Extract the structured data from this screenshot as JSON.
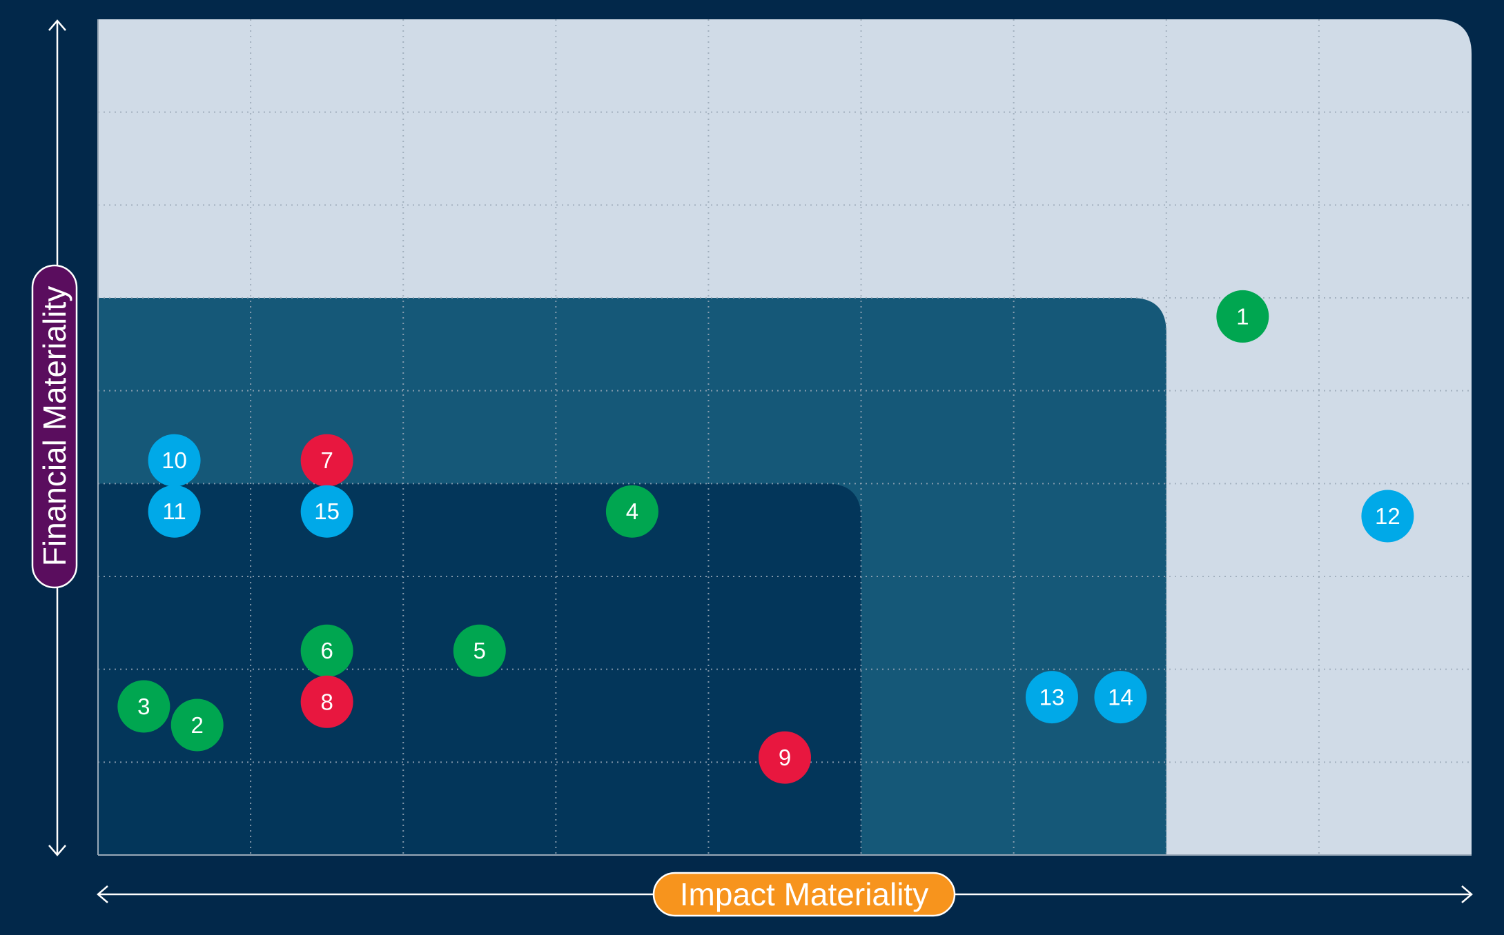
{
  "chart_data": {
    "type": "scatter",
    "x_label": "Impact Materiality",
    "y_label": "Financial Materiality",
    "xlim": [
      0,
      9
    ],
    "ylim": [
      0,
      9
    ],
    "xticks": [
      1,
      2,
      3,
      4,
      5,
      6,
      7,
      8
    ],
    "yticks": [
      1,
      2,
      3,
      4,
      5,
      6,
      7,
      8
    ],
    "grid": true,
    "zones": [
      {
        "xmax": 9,
        "ymax": 9,
        "color": "#d0dbe7"
      },
      {
        "xmax": 7,
        "ymax": 6,
        "color": "#155878"
      },
      {
        "xmax": 5,
        "ymax": 4,
        "color": "#03365a"
      }
    ],
    "points": [
      {
        "label": "1",
        "x": 7.5,
        "y": 5.8,
        "color": "#00a650"
      },
      {
        "label": "2",
        "x": 0.65,
        "y": 1.4,
        "color": "#00a650"
      },
      {
        "label": "3",
        "x": 0.3,
        "y": 1.6,
        "color": "#00a650"
      },
      {
        "label": "4",
        "x": 3.5,
        "y": 3.7,
        "color": "#00a650"
      },
      {
        "label": "5",
        "x": 2.5,
        "y": 2.2,
        "color": "#00a650"
      },
      {
        "label": "6",
        "x": 1.5,
        "y": 2.2,
        "color": "#00a650"
      },
      {
        "label": "7",
        "x": 1.5,
        "y": 4.25,
        "color": "#e8173f"
      },
      {
        "label": "8",
        "x": 1.5,
        "y": 1.65,
        "color": "#e8173f"
      },
      {
        "label": "9",
        "x": 4.5,
        "y": 1.05,
        "color": "#e8173f"
      },
      {
        "label": "10",
        "x": 0.5,
        "y": 4.25,
        "color": "#00a9e8"
      },
      {
        "label": "11",
        "x": 0.5,
        "y": 3.7,
        "color": "#00a9e8"
      },
      {
        "label": "12",
        "x": 8.45,
        "y": 3.65,
        "color": "#00a9e8"
      },
      {
        "label": "13",
        "x": 6.25,
        "y": 1.7,
        "color": "#00a9e8"
      },
      {
        "label": "14",
        "x": 6.7,
        "y": 1.7,
        "color": "#00a9e8"
      },
      {
        "label": "15",
        "x": 1.5,
        "y": 3.7,
        "color": "#00a9e8"
      }
    ]
  }
}
